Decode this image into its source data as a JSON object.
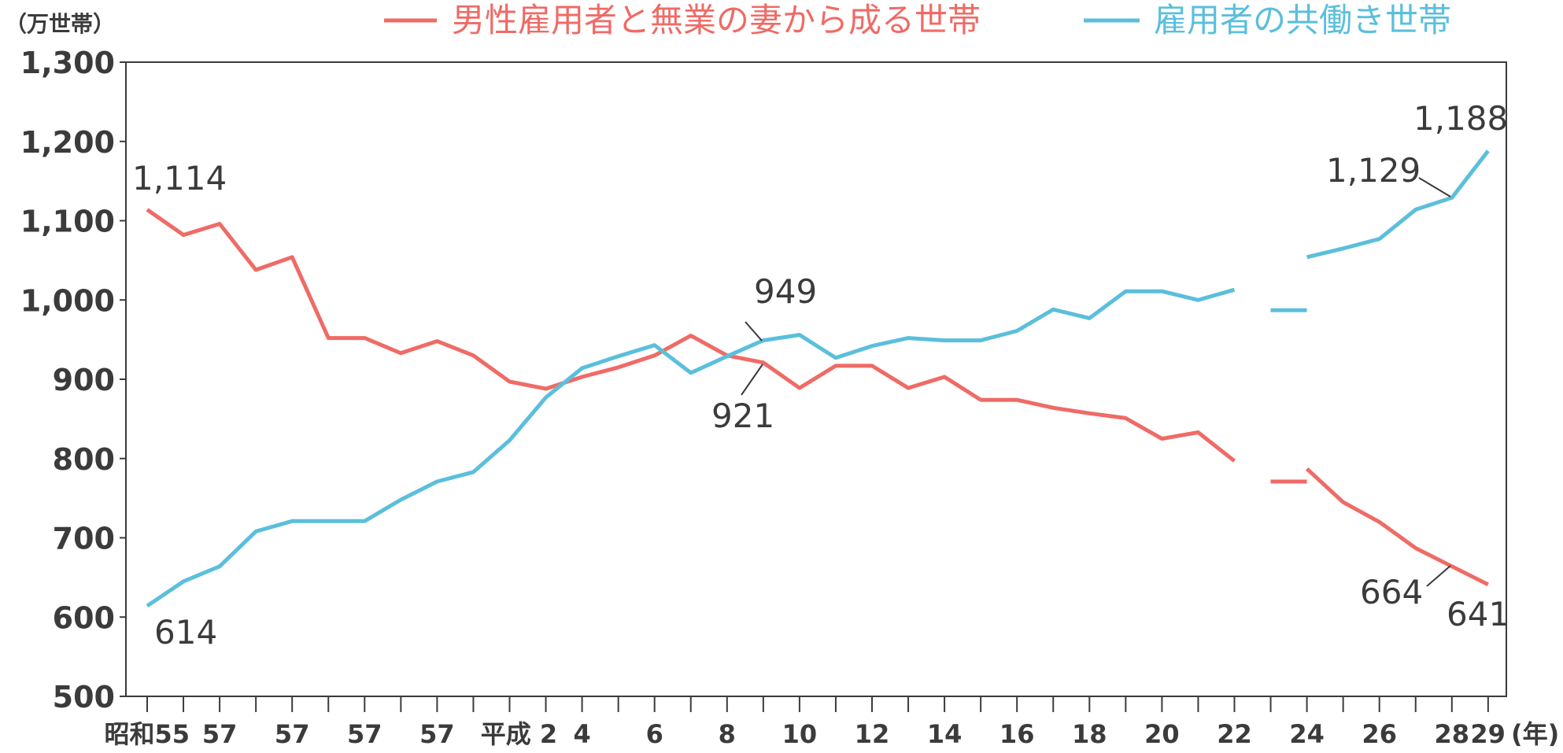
{
  "chart_data": {
    "type": "line",
    "ylabel": "（万世帯）",
    "xlabel": "(年)",
    "ylim": [
      500,
      1300
    ],
    "y_ticks": [
      "500",
      "600",
      "700",
      "800",
      "900",
      "1,000",
      "1,100",
      "1,200",
      "1,300"
    ],
    "x_tick_labels": [
      "昭和55",
      "57",
      "57",
      "57",
      "57",
      "平成 2",
      "4",
      "6",
      "8",
      "10",
      "12",
      "14",
      "16",
      "18",
      "20",
      "22",
      "24",
      "26",
      "28",
      "29"
    ],
    "grid": false,
    "legend_position": "top",
    "series": [
      {
        "name": "男性雇用者と無業の妻から成る世帯",
        "color": "#ef6b66",
        "segments": [
          [
            1114,
            1082,
            1096,
            1038,
            1054,
            952,
            952,
            933,
            948,
            930,
            897,
            888,
            903,
            915,
            930,
            955,
            930,
            921,
            889,
            917,
            917,
            889,
            903,
            874,
            874,
            864,
            857,
            851,
            825,
            833,
            797
          ],
          [
            771,
            771
          ],
          [
            787,
            745,
            720,
            687,
            664,
            641
          ]
        ]
      },
      {
        "name": "雇用者の共働き世帯",
        "color": "#5bbfdb",
        "segments": [
          [
            614,
            645,
            664,
            708,
            721,
            721,
            721,
            748,
            771,
            783,
            823,
            877,
            914,
            929,
            943,
            908,
            929,
            949,
            956,
            927,
            942,
            952,
            949,
            949,
            961,
            988,
            977,
            1011,
            1011,
            1000,
            1013
          ],
          [
            987,
            987
          ],
          [
            1054,
            1065,
            1077,
            1114,
            1129,
            1188
          ]
        ]
      }
    ],
    "annotations": [
      "1,114",
      "614",
      "949",
      "921",
      "1,129",
      "1,188",
      "664",
      "641"
    ]
  }
}
